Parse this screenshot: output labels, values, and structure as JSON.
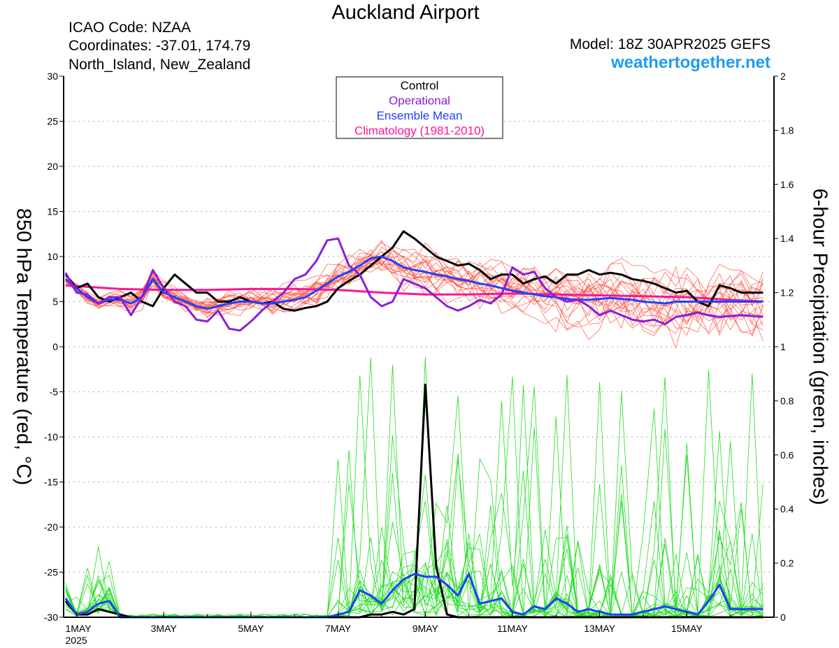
{
  "header": {
    "title": "Auckland Airport",
    "icao": "ICAO Code: NZAA",
    "coordinates": "Coordinates: -37.01, 174.79",
    "region": "North_Island, New_Zealand",
    "model": "Model: 18Z 30APR2025 GEFS",
    "site": "weathertogether.net"
  },
  "colors": {
    "members": "#ff5040",
    "precip": "#22dd22",
    "control": "#000000",
    "operational": "#8a1fd8",
    "ensemble_mean": "#2040ff",
    "climatology": "#ff1493"
  },
  "chart_data": {
    "type": "line",
    "ylabel": "850 hPa Temperature (red, °C)",
    "y2label": "6-hour Precipitation (green, inches)",
    "xlim": [
      0,
      63.5
    ],
    "ylim": [
      -30,
      30
    ],
    "y2lim": [
      0,
      2
    ],
    "yticks": [
      30,
      25,
      20,
      15,
      10,
      5,
      0,
      -5,
      -10,
      -15,
      -20,
      -25,
      -30
    ],
    "y2ticks": [
      2,
      1.8,
      1.6,
      1.4,
      1.2,
      1,
      0.8,
      0.6,
      0.4,
      0.2,
      0
    ],
    "xticks": [
      {
        "x": 0,
        "label": "1MAY",
        "sub": "2025"
      },
      {
        "x": 8,
        "label": "3MAY"
      },
      {
        "x": 16,
        "label": "5MAY"
      },
      {
        "x": 24,
        "label": "7MAY"
      },
      {
        "x": 32,
        "label": "9MAY"
      },
      {
        "x": 40,
        "label": "11MAY"
      },
      {
        "x": 48,
        "label": "13MAY"
      },
      {
        "x": 56,
        "label": "15MAY"
      }
    ],
    "grid": true,
    "legend_position": "top-center",
    "legend": [
      {
        "label": "Control",
        "color": "#000000"
      },
      {
        "label": "Operational",
        "color": "#8a1fd8"
      },
      {
        "label": "Ensemble Mean",
        "color": "#2040ff"
      },
      {
        "label": "Climatology (1981-2010)",
        "color": "#ff1493"
      }
    ],
    "series": [
      {
        "name": "Control",
        "axis": "left",
        "x": [
          -1,
          0,
          1,
          2,
          3,
          4,
          5,
          6,
          7,
          8,
          9,
          10,
          11,
          12,
          13,
          14,
          15,
          16,
          17,
          18,
          19,
          20,
          21,
          22,
          23,
          24,
          25,
          26,
          27,
          28,
          29,
          30,
          31,
          32,
          33,
          34,
          35,
          36,
          37,
          38,
          39,
          40,
          41,
          42,
          43,
          44,
          45,
          46,
          47,
          48,
          49,
          50,
          51,
          52,
          53,
          54,
          55,
          56,
          57,
          58,
          59,
          60,
          61,
          62,
          63
        ],
        "y": [
          8,
          6.5,
          7,
          5.5,
          5,
          5.5,
          6,
          5,
          4.5,
          6.5,
          8,
          7,
          6,
          6,
          5,
          5,
          5.5,
          5,
          4.8,
          5,
          4.2,
          4,
          4.3,
          4.5,
          5,
          6.5,
          7.3,
          8,
          9,
          10,
          11,
          12.8,
          12,
          11,
          10,
          9.5,
          9,
          9.2,
          8.5,
          7.5,
          8,
          8,
          7,
          7.5,
          7.8,
          7,
          8,
          8,
          8.5,
          8,
          8.2,
          8,
          7.5,
          7.3,
          7,
          6.5,
          6,
          6.2,
          5,
          4.5,
          6.8,
          6.5,
          6,
          6,
          6
        ]
      },
      {
        "name": "Operational",
        "axis": "left",
        "x": [
          -1,
          0,
          1,
          2,
          3,
          4,
          5,
          6,
          7,
          8,
          9,
          10,
          11,
          12,
          13,
          14,
          15,
          16,
          17,
          18,
          19,
          20,
          21,
          22,
          23,
          24,
          25,
          26,
          27,
          28,
          29,
          30,
          31,
          32,
          33,
          34,
          35,
          36,
          37,
          38,
          39,
          40,
          41,
          42,
          43,
          44,
          45,
          46,
          47,
          48,
          49,
          50,
          51,
          52,
          53,
          54,
          55,
          56,
          57,
          58,
          59,
          60,
          61,
          62,
          63
        ],
        "y": [
          8.2,
          6,
          5.8,
          4.8,
          5.5,
          5.5,
          3.5,
          5.5,
          8.5,
          6.5,
          5,
          4.5,
          3,
          2.8,
          4,
          2,
          1.8,
          2.8,
          4,
          5,
          6,
          7.5,
          8,
          9.5,
          11.8,
          12,
          9,
          8,
          5.5,
          4.5,
          5,
          7.5,
          7,
          6.5,
          5.5,
          4.5,
          4,
          4.5,
          5.2,
          4.8,
          5.8,
          8.8,
          8,
          8.3,
          6.5,
          5.5,
          5,
          5.2,
          4.5,
          3.5,
          4,
          3.5,
          3,
          2.8,
          3,
          2.5,
          3.3,
          3.5,
          3.8,
          3.5,
          3.3,
          3.4,
          3.5,
          3.4,
          3.3
        ]
      },
      {
        "name": "Ensemble Mean",
        "axis": "left",
        "x": [
          -1,
          0,
          1,
          2,
          3,
          4,
          5,
          6,
          7,
          8,
          9,
          10,
          11,
          12,
          13,
          14,
          15,
          16,
          17,
          18,
          19,
          20,
          21,
          22,
          23,
          24,
          25,
          26,
          27,
          28,
          29,
          30,
          31,
          32,
          33,
          34,
          35,
          36,
          37,
          38,
          39,
          40,
          41,
          42,
          43,
          44,
          45,
          46,
          47,
          48,
          49,
          50,
          51,
          52,
          53,
          54,
          55,
          56,
          57,
          58,
          59,
          60,
          61,
          62,
          63
        ],
        "y": [
          7.5,
          6.5,
          5.5,
          4.8,
          5.2,
          5.2,
          4.8,
          5.5,
          7.5,
          6,
          5.5,
          5,
          4.5,
          4.2,
          4.5,
          4.8,
          5,
          5,
          4.8,
          4.8,
          5,
          5.2,
          5.5,
          6.2,
          7,
          7.8,
          8.3,
          9,
          9.8,
          10,
          9.5,
          8.8,
          8.5,
          8.3,
          8,
          7.8,
          7.5,
          7.3,
          7,
          6.8,
          6.5,
          6.2,
          6,
          5.8,
          5.6,
          5.5,
          5.3,
          5.2,
          5.2,
          5.3,
          5.4,
          5.3,
          5.2,
          5,
          4.9,
          4.8,
          5,
          5,
          5,
          5,
          5,
          5,
          5,
          5,
          5
        ]
      },
      {
        "name": "Climatology (1981-2010)",
        "axis": "left",
        "x": [
          -1,
          4,
          8,
          12,
          16,
          20,
          24,
          28,
          32,
          36,
          40,
          44,
          48,
          52,
          56,
          60,
          63
        ],
        "y": [
          6.8,
          6.4,
          6.3,
          6.3,
          6.4,
          6.4,
          6.3,
          6,
          5.8,
          5.8,
          5.9,
          5.8,
          5.7,
          5.6,
          5.5,
          5.2,
          5
        ]
      },
      {
        "name": "Control precipitation",
        "axis": "right",
        "x": [
          -1,
          0,
          1,
          2,
          3,
          4,
          5,
          6,
          7,
          8,
          26,
          27,
          28,
          29,
          30,
          31,
          32,
          33,
          34,
          35,
          36,
          37,
          38,
          39,
          63
        ],
        "y": [
          0.06,
          0.01,
          0.01,
          0.03,
          0.02,
          0.01,
          0,
          0,
          0,
          0,
          0,
          0.01,
          0.01,
          0.02,
          0.01,
          0.03,
          0.86,
          0.19,
          0.01,
          0,
          0,
          0,
          0,
          0,
          0
        ]
      },
      {
        "name": "Ensemble mean precipitation",
        "axis": "right",
        "x": [
          -1,
          0,
          1,
          2,
          3,
          4,
          5,
          6,
          7,
          8,
          10,
          12,
          14,
          16,
          18,
          20,
          22,
          23,
          24,
          25,
          26,
          27,
          28,
          29,
          30,
          31,
          32,
          33,
          34,
          35,
          36,
          37,
          38,
          39,
          40,
          41,
          42,
          43,
          44,
          45,
          46,
          47,
          48,
          49,
          50,
          51,
          52,
          53,
          54,
          55,
          56,
          57,
          58,
          59,
          60,
          61,
          62,
          63
        ],
        "y": [
          0.07,
          0.01,
          0.02,
          0.05,
          0.06,
          0,
          0,
          0,
          0,
          0,
          0,
          0,
          0,
          0,
          0,
          0,
          0,
          0,
          0.01,
          0.02,
          0.1,
          0.08,
          0.05,
          0.1,
          0.14,
          0.16,
          0.15,
          0.15,
          0.12,
          0.08,
          0.16,
          0.05,
          0.06,
          0.07,
          0.02,
          0.01,
          0.04,
          0.03,
          0.07,
          0.05,
          0.02,
          0.03,
          0.02,
          0.01,
          0.01,
          0.01,
          0.02,
          0.03,
          0.04,
          0.03,
          0.02,
          0.01,
          0.06,
          0.12,
          0.03,
          0.03,
          0.03,
          0.03
        ]
      }
    ],
    "ensemble_members_count": 20,
    "precip_members_count": 20
  }
}
